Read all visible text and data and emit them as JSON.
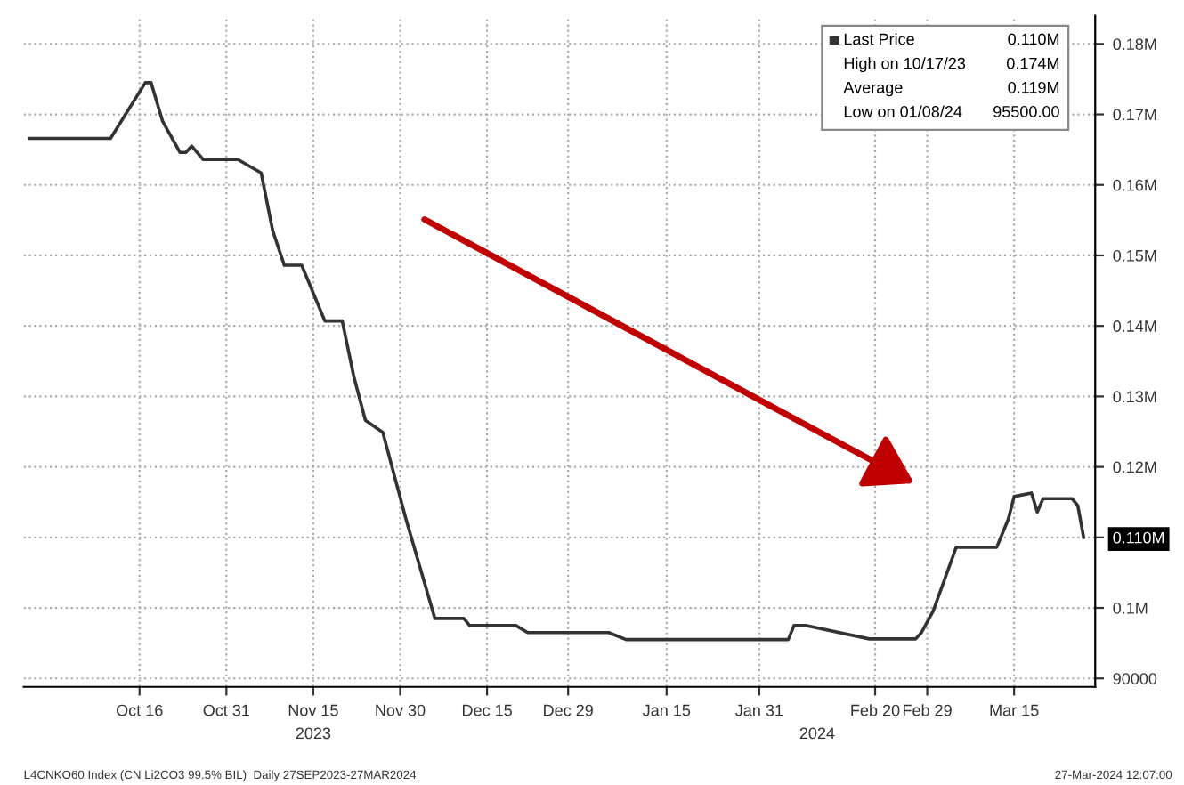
{
  "chart_data": {
    "type": "line",
    "x": [
      "2023-09-27",
      "2023-10-11",
      "2023-10-17",
      "2023-10-18",
      "2023-10-20",
      "2023-10-23",
      "2023-10-24",
      "2023-10-25",
      "2023-10-27",
      "2023-11-02",
      "2023-11-06",
      "2023-11-08",
      "2023-11-10",
      "2023-11-13",
      "2023-11-17",
      "2023-11-20",
      "2023-11-22",
      "2023-11-24",
      "2023-11-27",
      "2023-12-01",
      "2023-12-06",
      "2023-12-11",
      "2023-12-12",
      "2023-12-20",
      "2023-12-22",
      "2024-01-05",
      "2024-01-08",
      "2024-02-05",
      "2024-02-06",
      "2024-02-08",
      "2024-02-19",
      "2024-02-27",
      "2024-02-28",
      "2024-03-01",
      "2024-03-05",
      "2024-03-12",
      "2024-03-14",
      "2024-03-15",
      "2024-03-18",
      "2024-03-19",
      "2024-03-20",
      "2024-03-25",
      "2024-03-26",
      "2024-03-27"
    ],
    "series": [
      {
        "name": "Last Price",
        "color": "#333333",
        "values": [
          166600,
          166600,
          174500,
          174500,
          169000,
          164600,
          164600,
          165500,
          163600,
          163600,
          161700,
          153500,
          148600,
          148600,
          140700,
          140700,
          132800,
          126600,
          124900,
          112600,
          98500,
          98500,
          97500,
          97500,
          96500,
          96500,
          95500,
          95500,
          97500,
          97500,
          95600,
          95600,
          96500,
          99500,
          108600,
          108600,
          112600,
          115800,
          116300,
          113600,
          115500,
          115500,
          114500,
          110000
        ]
      }
    ],
    "xlim": [
      "2023-09-26",
      "2024-03-29"
    ],
    "xticks": [
      {
        "value": "2023-10-16",
        "label": "Oct 16"
      },
      {
        "value": "2023-10-31",
        "label": "Oct 31"
      },
      {
        "value": "2023-11-15",
        "label": "Nov 15"
      },
      {
        "value": "2023-11-30",
        "label": "Nov 30"
      },
      {
        "value": "2023-12-15",
        "label": "Dec 15"
      },
      {
        "value": "2023-12-29",
        "label": "Dec 29"
      },
      {
        "value": "2024-01-15",
        "label": "Jan 15"
      },
      {
        "value": "2024-01-31",
        "label": "Jan 31"
      },
      {
        "value": "2024-02-20",
        "label": "Feb 20"
      },
      {
        "value": "2024-02-29",
        "label": "Feb 29"
      },
      {
        "value": "2024-03-15",
        "label": "Mar 15"
      }
    ],
    "ylim": [
      88800,
      184000
    ],
    "yticks": [
      90000,
      {
        "value": 100000,
        "label": "0.1M"
      },
      {
        "value": 110000,
        "label": "0.110M"
      },
      {
        "value": 120000,
        "label": "0.12M"
      },
      {
        "value": 130000,
        "label": "0.13M"
      },
      {
        "value": 140000,
        "label": "0.14M"
      },
      {
        "value": 150000,
        "label": "0.15M"
      },
      {
        "value": 160000,
        "label": "0.16M"
      },
      {
        "value": 170000,
        "label": "0.17M"
      },
      {
        "value": 180000,
        "label": "0.18M"
      }
    ],
    "grid": true,
    "legend": "top right",
    "annotations": [
      "0.110M",
      "High on 10/17/23",
      "0.174M",
      "Average",
      "0.119M",
      "Low on 01/08/24",
      "95500.00",
      "L4CNKO60 Index (CN Li2CO3 99.5% BIL)  Daily 27SEP2023-27MAR2024",
      "27-Mar-2024 12:07:00",
      "2023",
      "2024"
    ]
  }
}
